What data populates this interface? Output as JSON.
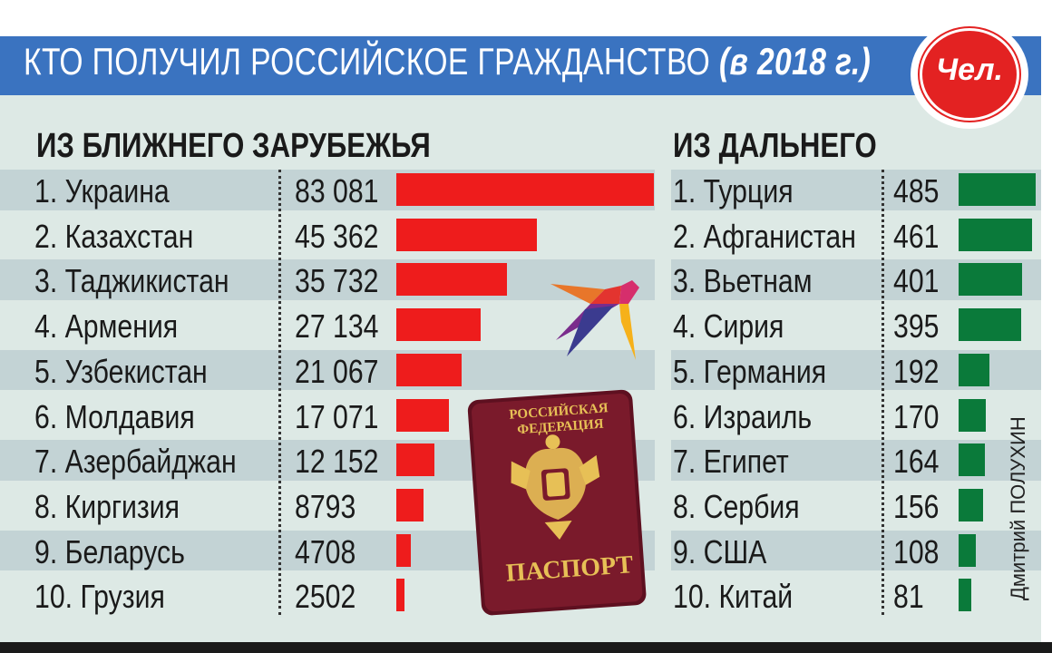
{
  "title": {
    "main": "КТО ПОЛУЧИЛ РОССИЙСКОЕ ГРАЖДАНСТВО",
    "year": "(в 2018 г.)"
  },
  "badge": "Чел.",
  "credit": "Дмитрий ПОЛУХИН",
  "passport": {
    "line1": "РОССИЙСКАЯ",
    "line2": "ФЕДЕРАЦИЯ",
    "label": "ПАСПОРТ"
  },
  "colors": {
    "near_bar": "#ee1c1c",
    "far_bar": "#0a7a3a",
    "title_bar": "#3a73c0",
    "badge": "#e32222"
  },
  "chart_data": [
    {
      "type": "bar",
      "orientation": "horizontal",
      "title": "ИЗ БЛИЖНЕГО ЗАРУБЕЖЬЯ",
      "categories": [
        "1. Украина",
        "2. Казахстан",
        "3. Таджикистан",
        "4. Армения",
        "5. Узбекистан",
        "6. Молдавия",
        "7. Азербайджан",
        "8. Киргизия",
        "9. Беларусь",
        "10. Грузия"
      ],
      "values": [
        83081,
        45362,
        35732,
        27134,
        21067,
        17071,
        12152,
        8793,
        4708,
        2502
      ],
      "labels": [
        "83 081",
        "45 362",
        "35 732",
        "27 134",
        "21 067",
        "17 071",
        "12 152",
        "8793",
        "4708",
        "2502"
      ],
      "color": "#ee1c1c"
    },
    {
      "type": "bar",
      "orientation": "horizontal",
      "title": "ИЗ ДАЛЬНЕГО",
      "categories": [
        "1. Турция",
        "2. Афганистан",
        "3. Вьетнам",
        "4. Сирия",
        "5. Германия",
        "6. Израиль",
        "7. Египет",
        "8. Сербия",
        "9. США",
        "10. Китай"
      ],
      "values": [
        485,
        461,
        401,
        395,
        192,
        170,
        164,
        156,
        108,
        81
      ],
      "labels": [
        "485",
        "461",
        "401",
        "395",
        "192",
        "170",
        "164",
        "156",
        "108",
        "81"
      ],
      "color": "#0a7a3a"
    }
  ]
}
